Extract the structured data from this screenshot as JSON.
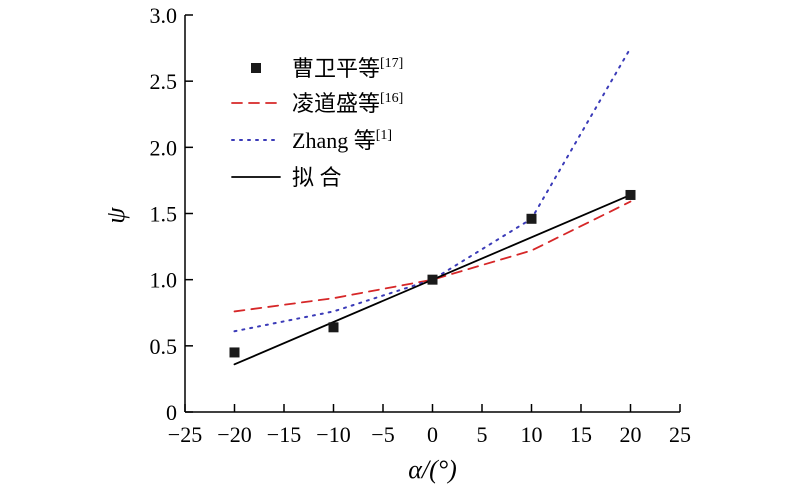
{
  "chart_data": {
    "type": "line",
    "xlabel": "α/(°)",
    "ylabel": "ψ",
    "xlim": [
      -25,
      25
    ],
    "ylim": [
      0,
      3.0
    ],
    "xticks": [
      -25,
      -20,
      -15,
      -10,
      -5,
      0,
      5,
      10,
      15,
      20,
      25
    ],
    "yticks": [
      0,
      0.5,
      1.0,
      1.5,
      2.0,
      2.5,
      3.0
    ],
    "xtick_labels": [
      "−25",
      "−20",
      "−15",
      "−10",
      "−5",
      "0",
      "5",
      "10",
      "15",
      "20",
      "25"
    ],
    "ytick_labels": [
      "0",
      "0.5",
      "1.0",
      "1.5",
      "2.0",
      "2.5",
      "3.0"
    ],
    "grid": false,
    "legend_position": "top-left",
    "series": [
      {
        "name": "曹卫平等",
        "ref": "[17]",
        "style": "square-markers",
        "color": "#1a1a1a",
        "x": [
          -20,
          -10,
          0,
          10,
          20
        ],
        "y": [
          0.45,
          0.64,
          1.0,
          1.46,
          1.64
        ]
      },
      {
        "name": "凌道盛等",
        "ref": "[16]",
        "style": "dashed",
        "color": "#d62728",
        "x": [
          -20,
          -10,
          0,
          10,
          20
        ],
        "y": [
          0.76,
          0.86,
          1.0,
          1.22,
          1.59
        ]
      },
      {
        "name": "Zhang 等",
        "ref": "[1]",
        "style": "dotted",
        "color": "#3b3bb8",
        "x": [
          -20,
          -10,
          0,
          10,
          20
        ],
        "y": [
          0.61,
          0.76,
          1.0,
          1.46,
          2.75
        ]
      },
      {
        "name": "拟 合",
        "ref": "",
        "style": "solid",
        "color": "#000000",
        "x": [
          -20,
          20
        ],
        "y": [
          0.36,
          1.64
        ]
      }
    ]
  }
}
